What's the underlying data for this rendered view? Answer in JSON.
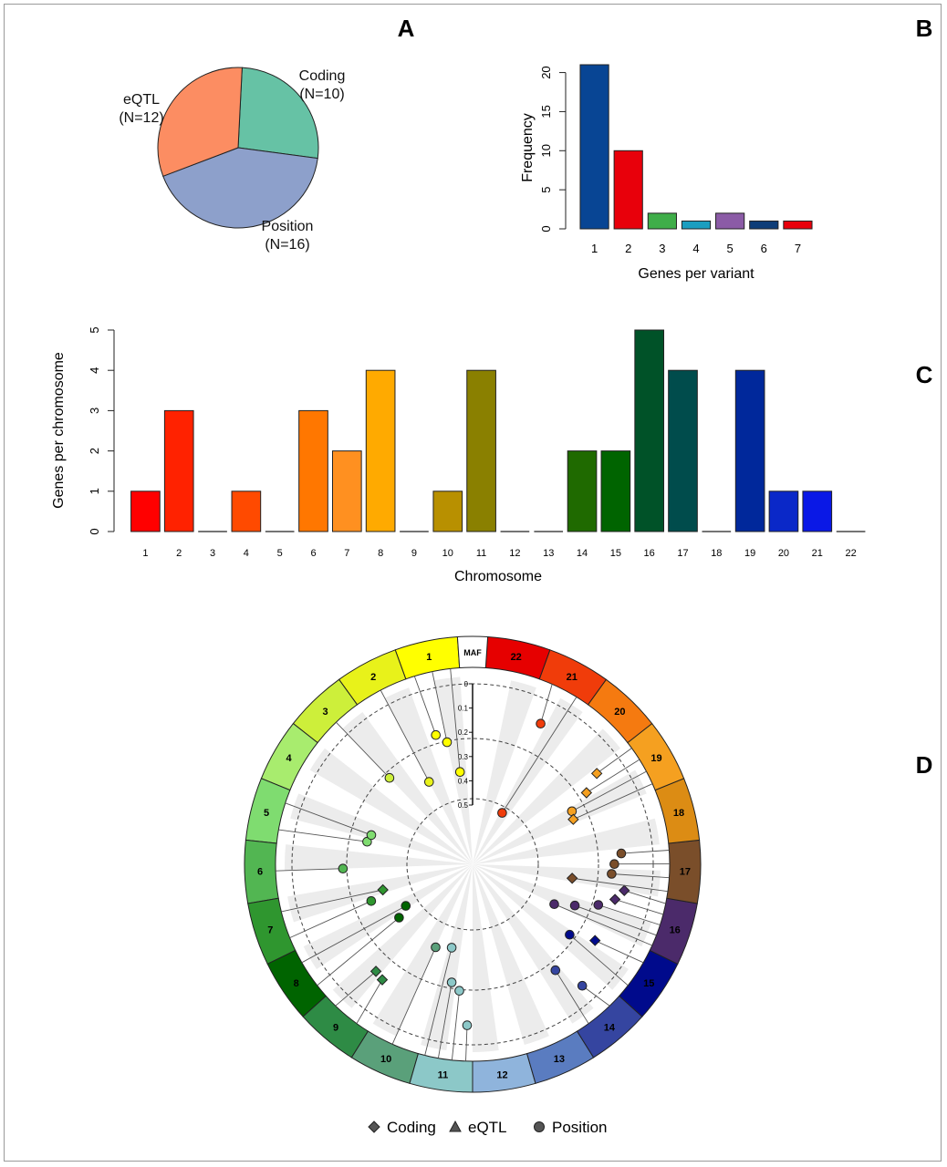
{
  "panel_labels": {
    "a": "A",
    "b": "B",
    "c": "C",
    "d": "D"
  },
  "chart_data": [
    {
      "panel": "A",
      "type": "pie",
      "slices": [
        {
          "label": "Coding",
          "count": "(N=10)",
          "value": 10,
          "color": "#66c2a5"
        },
        {
          "label": "Position",
          "count": "(N=16)",
          "value": 16,
          "color": "#8da0cb"
        },
        {
          "label": "eQTL",
          "count": "(N=12)",
          "value": 12,
          "color": "#fc8d62"
        }
      ]
    },
    {
      "panel": "B",
      "type": "bar",
      "xlabel": "Genes per variant",
      "ylabel": "Frequency",
      "categories": [
        "1",
        "2",
        "3",
        "4",
        "5",
        "6",
        "7"
      ],
      "values": [
        21,
        10,
        2,
        1,
        2,
        1,
        1
      ],
      "colors": [
        "#084594",
        "#e8000b",
        "#3fae49",
        "#1a9ec0",
        "#8b5ba6",
        "#0d3d78",
        "#e8000b"
      ],
      "ylim": [
        0,
        21
      ],
      "yticks": [
        "0",
        "5",
        "10",
        "15",
        "20"
      ]
    },
    {
      "panel": "C",
      "type": "bar",
      "xlabel": "Chromosome",
      "ylabel": "Genes per chromosome",
      "categories": [
        "1",
        "2",
        "3",
        "4",
        "5",
        "6",
        "7",
        "8",
        "9",
        "10",
        "11",
        "12",
        "13",
        "14",
        "15",
        "16",
        "17",
        "18",
        "19",
        "20",
        "21",
        "22"
      ],
      "values": [
        1,
        3,
        0,
        1,
        0,
        3,
        2,
        4,
        0,
        1,
        4,
        0,
        0,
        2,
        2,
        5,
        4,
        0,
        4,
        1,
        1,
        0
      ],
      "colors": [
        "#ff0000",
        "#ff2200",
        "#ff3300",
        "#ff4a00",
        "#ff6600",
        "#ff7700",
        "#ff9020",
        "#ffaa00",
        "#d49a00",
        "#b89000",
        "#8a8000",
        "#5a7a00",
        "#3a7000",
        "#1f6a00",
        "#006400",
        "#005228",
        "#004c4c",
        "#003a6a",
        "#00289b",
        "#0a28c8",
        "#0a18e6",
        "#0000c8"
      ],
      "ylim": [
        0,
        5
      ],
      "yticks": [
        "0",
        "1",
        "2",
        "3",
        "4",
        "5"
      ]
    },
    {
      "panel": "D",
      "type": "scatter",
      "maf_label": "MAF",
      "maf_ticks": [
        "0",
        "0.1",
        "0.2",
        "0.3",
        "0.4",
        "0.5"
      ],
      "chromosomes": [
        {
          "label": "1",
          "color": "#ffff00"
        },
        {
          "label": "2",
          "color": "#e8f21a"
        },
        {
          "label": "3",
          "color": "#cdef3a"
        },
        {
          "label": "4",
          "color": "#a8ec6e"
        },
        {
          "label": "5",
          "color": "#7fdc70"
        },
        {
          "label": "6",
          "color": "#52b652"
        },
        {
          "label": "7",
          "color": "#2f962f"
        },
        {
          "label": "8",
          "color": "#006400"
        },
        {
          "label": "9",
          "color": "#2e8b45"
        },
        {
          "label": "10",
          "color": "#5aa07a"
        },
        {
          "label": "11",
          "color": "#8cc8c8"
        },
        {
          "label": "12",
          "color": "#8fb4dc"
        },
        {
          "label": "13",
          "color": "#5a7cc0"
        },
        {
          "label": "14",
          "color": "#3545a0"
        },
        {
          "label": "15",
          "color": "#000a8c"
        },
        {
          "label": "16",
          "color": "#4b2a6a"
        },
        {
          "label": "17",
          "color": "#7a4e2a"
        },
        {
          "label": "18",
          "color": "#dc8c14"
        },
        {
          "label": "19",
          "color": "#f5a020"
        },
        {
          "label": "20",
          "color": "#f57a10"
        },
        {
          "label": "21",
          "color": "#f03c0a"
        },
        {
          "label": "22",
          "color": "#e60000"
        }
      ],
      "points": [
        {
          "chrom": "1",
          "maf": 0.19,
          "shape": "circle"
        },
        {
          "chrom": "1",
          "maf": 0.23,
          "shape": "circle"
        },
        {
          "chrom": "1",
          "maf": 0.36,
          "shape": "circle"
        },
        {
          "chrom": "2",
          "maf": 0.36,
          "shape": "circle"
        },
        {
          "chrom": "3",
          "maf": 0.25,
          "shape": "circle"
        },
        {
          "chrom": "5",
          "maf": 0.3,
          "shape": "circle"
        },
        {
          "chrom": "5",
          "maf": 0.31,
          "shape": "circle"
        },
        {
          "chrom": "6",
          "maf": 0.21,
          "shape": "circle"
        },
        {
          "chrom": "7",
          "maf": 0.3,
          "shape": "circle"
        },
        {
          "chrom": "7",
          "maf": 0.36,
          "shape": "diamond"
        },
        {
          "chrom": "8",
          "maf": 0.37,
          "shape": "circle"
        },
        {
          "chrom": "8",
          "maf": 0.42,
          "shape": "circle"
        },
        {
          "chrom": "9",
          "maf": 0.14,
          "shape": "diamond"
        },
        {
          "chrom": "9",
          "maf": 0.15,
          "shape": "diamond"
        },
        {
          "chrom": "10",
          "maf": 0.37,
          "shape": "circle"
        },
        {
          "chrom": "11",
          "maf": 0.08,
          "shape": "circle"
        },
        {
          "chrom": "11",
          "maf": 0.22,
          "shape": "circle"
        },
        {
          "chrom": "11",
          "maf": 0.25,
          "shape": "circle"
        },
        {
          "chrom": "11",
          "maf": 0.39,
          "shape": "circle"
        },
        {
          "chrom": "14",
          "maf": 0.07,
          "shape": "circle"
        },
        {
          "chrom": "14",
          "maf": 0.19,
          "shape": "circle"
        },
        {
          "chrom": "15",
          "maf": 0.15,
          "shape": "diamond"
        },
        {
          "chrom": "15",
          "maf": 0.25,
          "shape": "circle"
        },
        {
          "chrom": "16",
          "maf": 0.11,
          "shape": "diamond"
        },
        {
          "chrom": "16",
          "maf": 0.14,
          "shape": "diamond"
        },
        {
          "chrom": "16",
          "maf": 0.2,
          "shape": "circle"
        },
        {
          "chrom": "16",
          "maf": 0.29,
          "shape": "circle"
        },
        {
          "chrom": "16",
          "maf": 0.37,
          "shape": "circle"
        },
        {
          "chrom": "17",
          "maf": 0.13,
          "shape": "circle"
        },
        {
          "chrom": "17",
          "maf": 0.16,
          "shape": "circle"
        },
        {
          "chrom": "17",
          "maf": 0.17,
          "shape": "circle"
        },
        {
          "chrom": "17",
          "maf": 0.33,
          "shape": "diamond"
        },
        {
          "chrom": "19",
          "maf": 0.11,
          "shape": "diamond"
        },
        {
          "chrom": "19",
          "maf": 0.19,
          "shape": "diamond"
        },
        {
          "chrom": "19",
          "maf": 0.28,
          "shape": "circle"
        },
        {
          "chrom": "19",
          "maf": 0.29,
          "shape": "diamond"
        },
        {
          "chrom": "21",
          "maf": 0.1,
          "shape": "circle"
        },
        {
          "chrom": "21",
          "maf": 0.5,
          "shape": "circle"
        }
      ],
      "legend": [
        {
          "label": "Coding",
          "shape": "diamond"
        },
        {
          "label": "eQTL",
          "shape": "triangle"
        },
        {
          "label": "Position",
          "shape": "circle"
        }
      ]
    }
  ]
}
